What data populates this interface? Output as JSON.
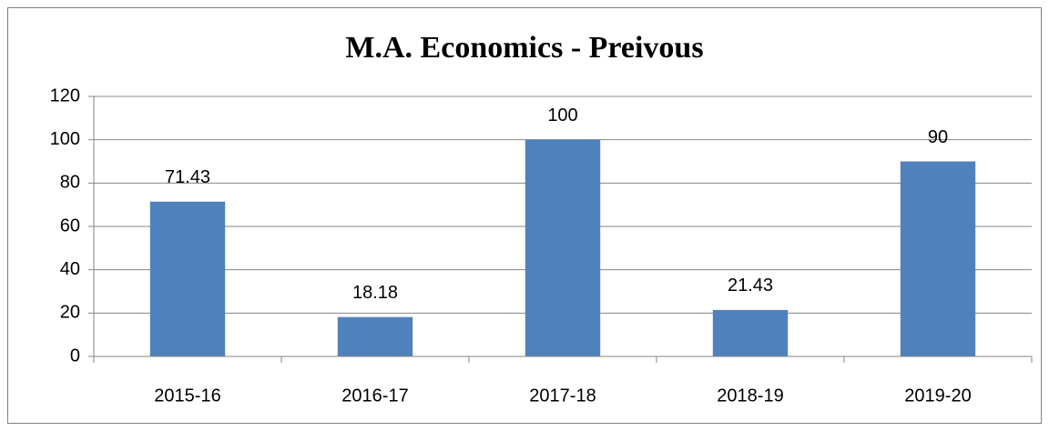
{
  "chart_data": {
    "type": "bar",
    "title": "M.A. Economics - Preivous",
    "categories": [
      "2015-16",
      "2016-17",
      "2017-18",
      "2018-19",
      "2019-20"
    ],
    "values": [
      71.43,
      18.18,
      100,
      21.43,
      90
    ],
    "color": "#4f81bd",
    "ylim": [
      0,
      120
    ],
    "yticks": [
      0,
      20,
      40,
      60,
      80,
      100,
      120
    ],
    "grid": true
  }
}
